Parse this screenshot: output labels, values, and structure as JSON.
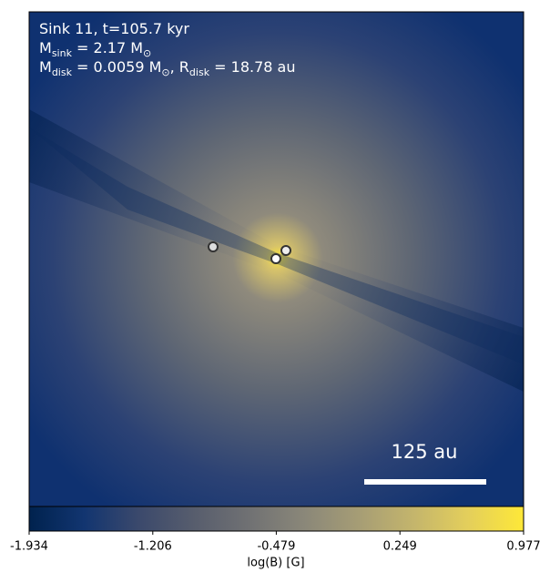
{
  "chart_data": {
    "type": "heatmap",
    "colormap": "cividis",
    "annotation_lines": [
      [
        {
          "text": "Sink 11, t=105.7 kyr"
        }
      ],
      [
        {
          "text": "M"
        },
        {
          "sub": "sink"
        },
        {
          "text": " = 2.17 M"
        },
        {
          "sub": "⊙"
        }
      ],
      [
        {
          "text": "M"
        },
        {
          "sub": "disk"
        },
        {
          "text": " = 0.0059 M"
        },
        {
          "sub": "⊙"
        },
        {
          "text": ", R"
        },
        {
          "sub": "disk"
        },
        {
          "text": " = 18.78 au"
        }
      ]
    ],
    "scale_bar_label": "125 au",
    "colorbar_label": "log(B) [G]",
    "clim": [
      -1.934,
      0.977
    ],
    "cticks": [
      -1.934,
      -1.206,
      -0.479,
      0.249,
      0.977
    ]
  }
}
